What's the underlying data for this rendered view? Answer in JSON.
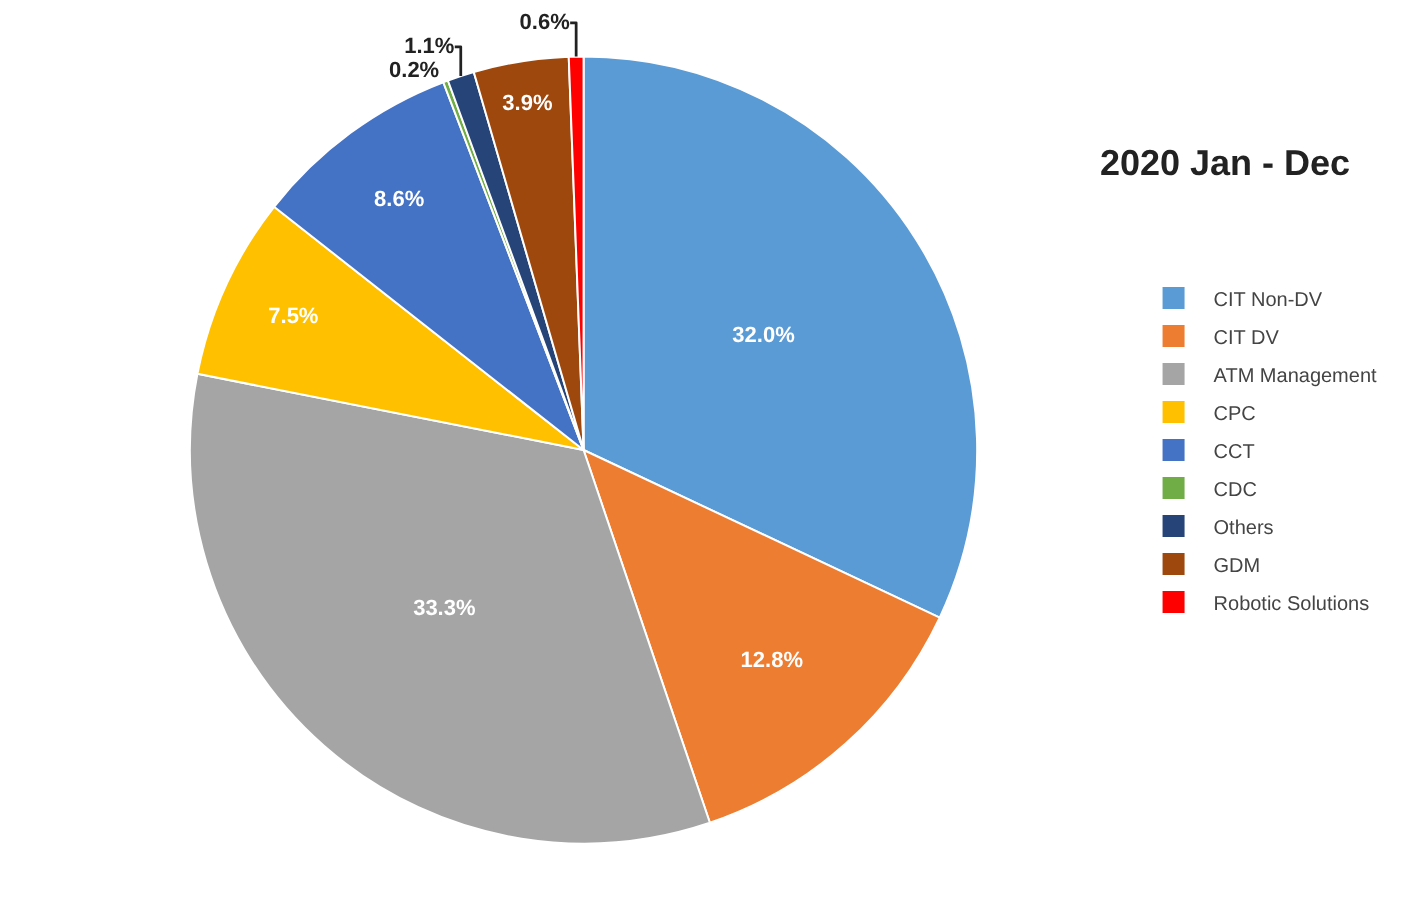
{
  "chart_data": {
    "type": "pie",
    "title": "2020 Jan - Dec",
    "categories": [
      "CIT Non-DV",
      "CIT DV",
      "ATM Management",
      "CPC",
      "CCT",
      "CDC",
      "Others",
      "GDM",
      "Robotic Solutions"
    ],
    "values": [
      32.0,
      12.8,
      33.3,
      7.5,
      8.6,
      0.2,
      1.1,
      3.9,
      0.6
    ],
    "colors": [
      "#5b9bd5",
      "#ed7d31",
      "#a5a5a5",
      "#ffc000",
      "#4472c4",
      "#70ad47",
      "#264478",
      "#9e480e",
      "#ff0000"
    ],
    "value_labels": [
      "32.0%",
      "12.8%",
      "33.3%",
      "7.5%",
      "8.6%",
      "0.2%",
      "1.1%",
      "3.9%",
      "0.6%"
    ],
    "legend": "right"
  }
}
